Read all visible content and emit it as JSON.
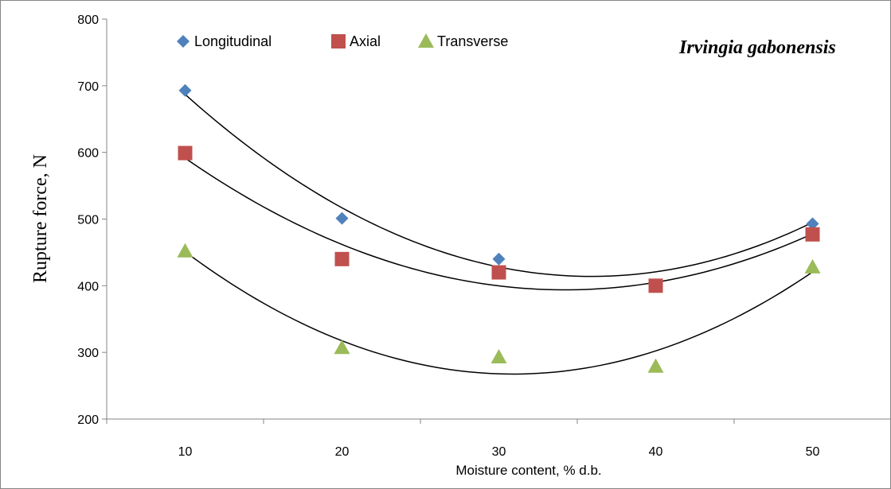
{
  "chart_data": {
    "type": "scatter",
    "title": "Irvingia gabonensis",
    "xlabel": "Moisture content, % d.b.",
    "ylabel": "Rupture force, N",
    "x": [
      10,
      20,
      30,
      40,
      50
    ],
    "xlim": [
      5,
      55
    ],
    "ylim": [
      200,
      800
    ],
    "x_ticks": [
      "10",
      "20",
      "30",
      "40",
      "50"
    ],
    "y_ticks": [
      "200",
      "300",
      "400",
      "500",
      "600",
      "700",
      "800"
    ],
    "grid": false,
    "legend_position": "top-left",
    "trendline": "polynomial (order 2)",
    "series": [
      {
        "name": "Longitudinal",
        "color": "#4f81bd",
        "marker": "diamond",
        "values": [
          693,
          501,
          440,
          null,
          493
        ]
      },
      {
        "name": "Axial",
        "color": "#c0504d",
        "marker": "square",
        "values": [
          599,
          440,
          420,
          400,
          477
        ]
      },
      {
        "name": "Transverse",
        "color": "#9bbb59",
        "marker": "triangle",
        "values": [
          452,
          307,
          293,
          279,
          428
        ]
      }
    ]
  }
}
